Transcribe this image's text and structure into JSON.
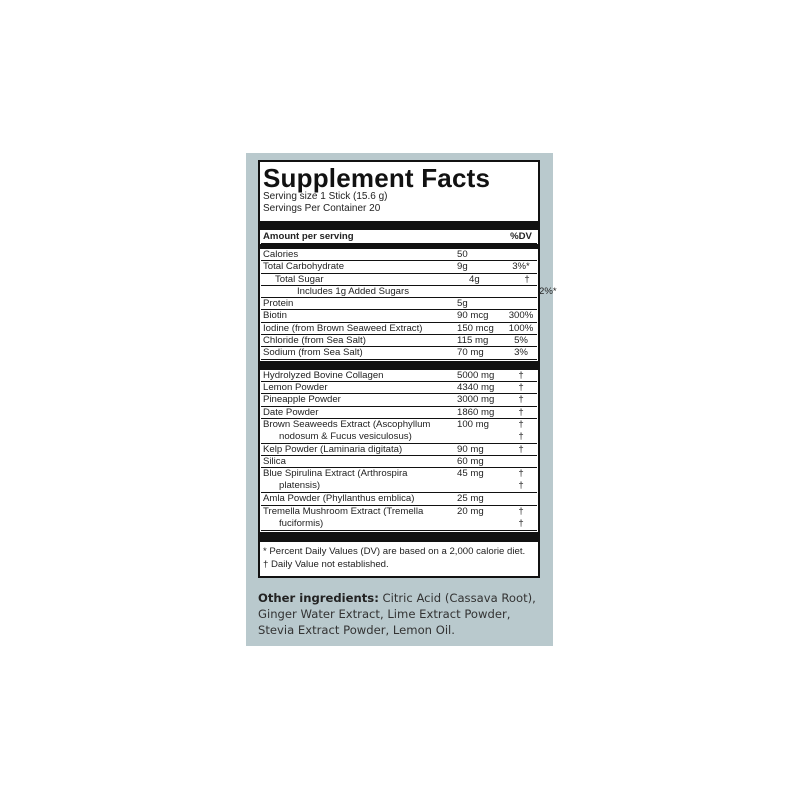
{
  "title": "Supplement Facts",
  "serving_size": "Serving size 1 Stick (15.6 g)",
  "servings_per_container": "Servings Per Container 20",
  "header": {
    "amount": "Amount per serving",
    "dv": "%DV"
  },
  "nutrients": [
    {
      "name": "Calories",
      "amount": "50",
      "dv": ""
    },
    {
      "name": "Total Carbohydrate",
      "amount": "9g",
      "dv": "3%*"
    },
    {
      "name": "Total Sugar",
      "amount": "4g",
      "dv": "†"
    },
    {
      "name": "Includes 1g Added Sugars",
      "amount": "",
      "dv": "2%*"
    },
    {
      "name": "Protein",
      "amount": "5g",
      "dv": ""
    },
    {
      "name": "Biotin",
      "amount": "90 mcg",
      "dv": "300%"
    },
    {
      "name": "Iodine (from Brown Seaweed Extract)",
      "amount": "150 mcg",
      "dv": "100%"
    },
    {
      "name": "Chloride (from Sea Salt)",
      "amount": "115 mg",
      "dv": "5%"
    },
    {
      "name": "Sodium (from Sea Salt)",
      "amount": "70 mg",
      "dv": "3%"
    }
  ],
  "ingredients": [
    {
      "name": "Hydrolyzed Bovine Collagen",
      "amount": "5000 mg",
      "dv": "†"
    },
    {
      "name": "Lemon Powder",
      "amount": "4340 mg",
      "dv": "†"
    },
    {
      "name": "Pineapple Powder",
      "amount": "3000 mg",
      "dv": "†"
    },
    {
      "name": "Date Powder",
      "amount": "1860 mg",
      "dv": "†"
    },
    {
      "name": "Brown Seaweeds Extract (Ascophyllum",
      "name2": "nodosum & Fucus vesiculosus)",
      "amount": "100 mg",
      "dv": "†",
      "dv2": "†"
    },
    {
      "name": "Kelp Powder (Laminaria digitata)",
      "amount": "90 mg",
      "dv": "†"
    },
    {
      "name": "Silica",
      "amount": "60 mg",
      "dv": ""
    },
    {
      "name": "Blue Spirulina Extract (Arthrospira",
      "name2": "platensis)",
      "amount": "45 mg",
      "dv": "†",
      "dv2": "†"
    },
    {
      "name": "Amla Powder (Phyllanthus emblica)",
      "amount": "25 mg",
      "dv": ""
    },
    {
      "name": "Tremella Mushroom Extract (Tremella",
      "name2": "fuciformis)",
      "amount": "20 mg",
      "dv": "†",
      "dv2": "†"
    }
  ],
  "footnotes": [
    "* Percent Daily Values (DV) are based on a 2,000 calorie diet.",
    "† Daily Value not established."
  ],
  "other": {
    "label": "Other ingredients:",
    "text": " Citric Acid (Cassava Root), Ginger Water Extract, Lime Extract Powder, Stevia Extract Powder, Lemon Oil."
  }
}
